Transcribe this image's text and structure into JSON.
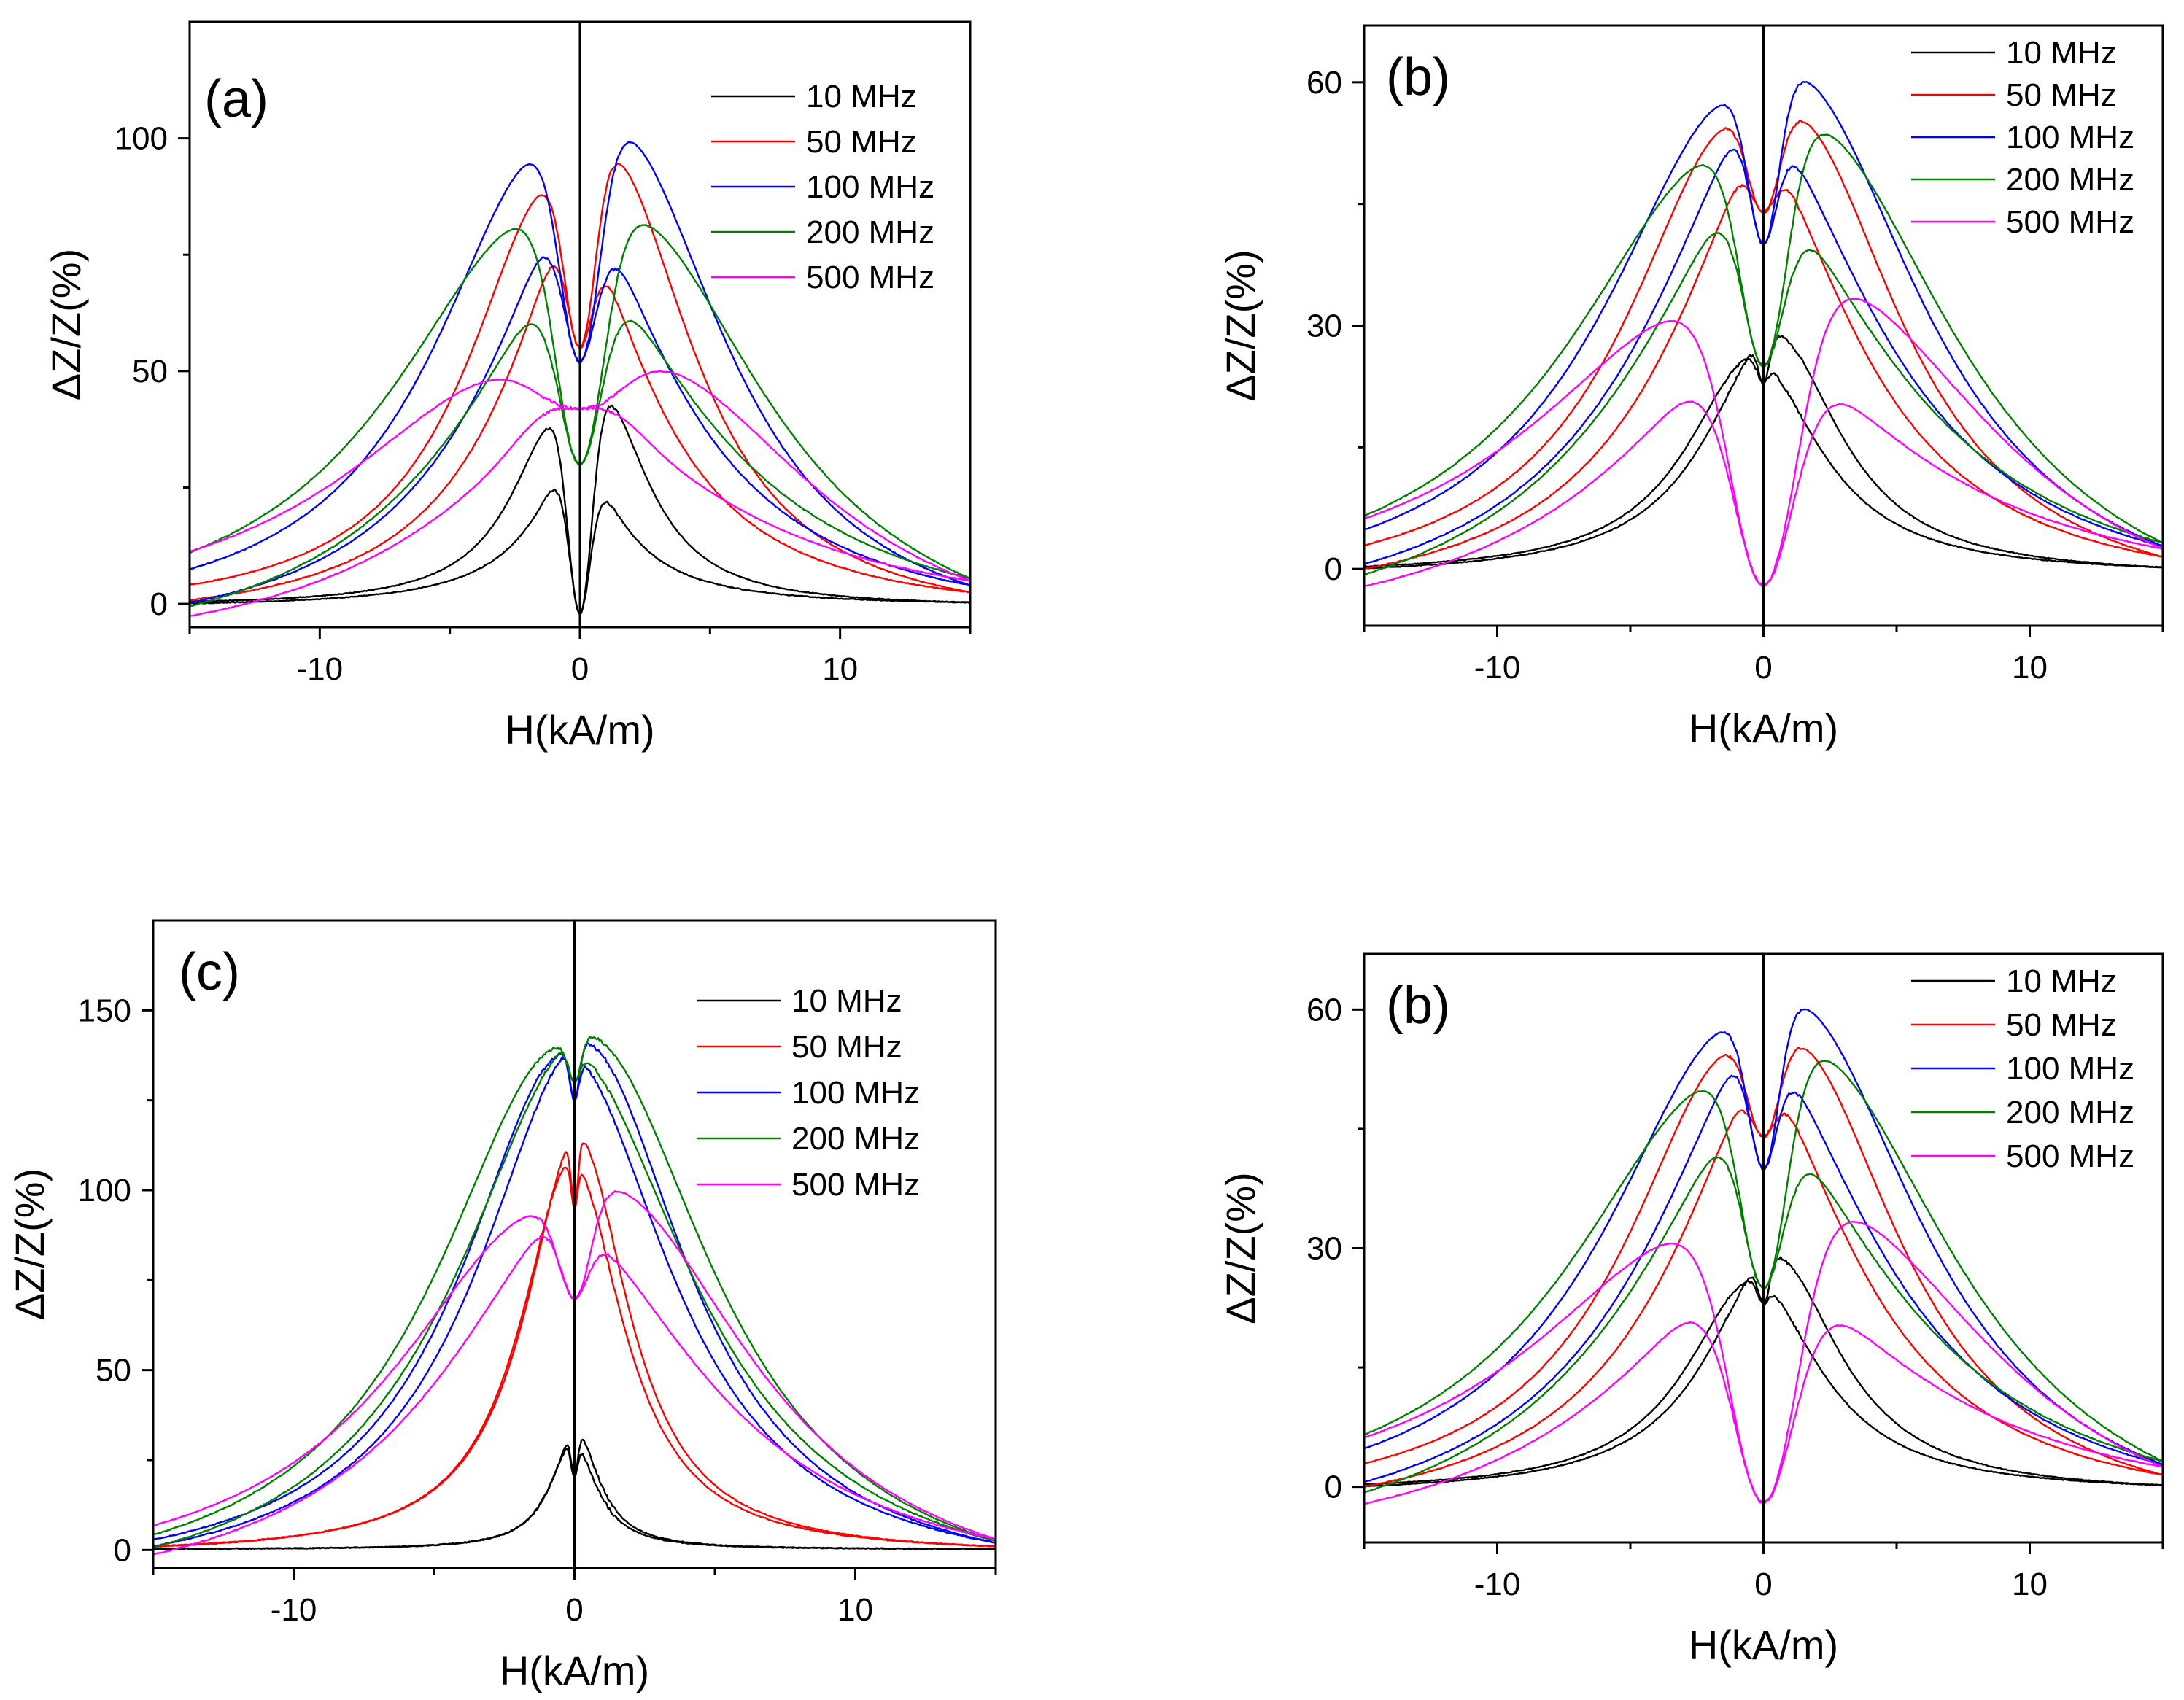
{
  "figure": {
    "panels": [
      {
        "panel_label": "(a)",
        "xlabel": "H(kA/m)",
        "ylabel": "ΔZ/Z(%)",
        "xlim": [
          -15,
          15
        ],
        "ylim": [
          -5,
          125
        ],
        "xticks": [
          -10,
          0,
          10
        ],
        "yticks": [
          0,
          50,
          100
        ],
        "xtick_labels": [
          "-10",
          "0",
          "10"
        ],
        "ytick_labels": [
          "0",
          "50",
          "100"
        ]
      },
      {
        "panel_label": "(b)",
        "xlabel": "H(kA/m)",
        "ylabel": "ΔZ/Z(%)",
        "xlim": [
          -15,
          15
        ],
        "ylim": [
          -7,
          67
        ],
        "xticks": [
          -10,
          0,
          10
        ],
        "yticks": [
          0,
          30,
          60
        ],
        "xtick_labels": [
          "-10",
          "0",
          "10"
        ],
        "ytick_labels": [
          "0",
          "30",
          "60"
        ]
      },
      {
        "panel_label": "(c)",
        "xlabel": "H(kA/m)",
        "ylabel": "ΔZ/Z(%)",
        "xlim": [
          -15,
          15
        ],
        "ylim": [
          -5,
          175
        ],
        "xticks": [
          -10,
          0,
          10
        ],
        "yticks": [
          0,
          50,
          100,
          150
        ],
        "xtick_labels": [
          "-10",
          "0",
          "10"
        ],
        "ytick_labels": [
          "0",
          "50",
          "100",
          "150"
        ]
      },
      {
        "panel_label": "(b)",
        "xlabel": "H(kA/m)",
        "ylabel": "ΔZ/Z(%)",
        "xlim": [
          -15,
          15
        ],
        "ylim": [
          -7,
          67
        ],
        "xticks": [
          -10,
          0,
          10
        ],
        "yticks": [
          0,
          30,
          60
        ],
        "xtick_labels": [
          "-10",
          "0",
          "10"
        ],
        "ytick_labels": [
          "0",
          "30",
          "60"
        ]
      }
    ]
  },
  "chart_data": [
    {
      "type": "line",
      "title": "(a)",
      "xlabel": "H(kA/m)",
      "ylabel": "ΔZ/Z(%)",
      "xlim": [
        -15,
        15
      ],
      "ylim": [
        -5,
        125
      ],
      "grid": false,
      "legend_position": "top-right",
      "series": [
        {
          "name": "10 MHz",
          "color": "#000000",
          "peak_field": 0.8,
          "peak_values": [
            45,
            40
          ],
          "zero_field_value": -2,
          "end_value": 0.3,
          "width": 2.2
        },
        {
          "name": "50 MHz",
          "color": "#ff0000",
          "peak_field": 1.0,
          "peak_values": [
            97,
            90
          ],
          "zero_field_value": 55,
          "end_value": 2.5,
          "width": 4.0
        },
        {
          "name": "100 MHz",
          "color": "#0000ff",
          "peak_field": 1.3,
          "peak_values": [
            102,
            97
          ],
          "zero_field_value": 52,
          "end_value": 4.0,
          "width": 5.2
        },
        {
          "name": "200 MHz",
          "color": "#008000",
          "peak_field": 1.6,
          "peak_values": [
            84,
            83
          ],
          "zero_field_value": 30,
          "end_value": 5.5,
          "width": 6.8
        },
        {
          "name": "500 MHz",
          "color": "#ff00ff",
          "peak_field": 2.5,
          "peak_values": [
            51,
            49
          ],
          "zero_field_value": 42,
          "end_value": 5.0,
          "width": 8.0
        }
      ]
    },
    {
      "type": "line",
      "title": "(b)",
      "xlabel": "H(kA/m)",
      "ylabel": "ΔZ/Z(%)",
      "xlim": [
        -15,
        15
      ],
      "ylim": [
        -7,
        67
      ],
      "grid": false,
      "legend_position": "top-right",
      "series": [
        {
          "name": "10 MHz",
          "color": "#000000",
          "peak_field": 0.4,
          "peak_values": [
            29,
            26
          ],
          "zero_field_value": 23,
          "end_value": 0.2,
          "width": 3.0
        },
        {
          "name": "50 MHz",
          "color": "#ff0000",
          "peak_field": 1.0,
          "peak_values": [
            56,
            55
          ],
          "zero_field_value": 44,
          "end_value": 1.5,
          "width": 5.0
        },
        {
          "name": "100 MHz",
          "color": "#0000ff",
          "peak_field": 1.0,
          "peak_values": [
            61,
            58
          ],
          "zero_field_value": 40,
          "end_value": 2.8,
          "width": 6.0
        },
        {
          "name": "200 MHz",
          "color": "#008000",
          "peak_field": 1.5,
          "peak_values": [
            55,
            51
          ],
          "zero_field_value": 25,
          "end_value": 3.2,
          "width": 7.0
        },
        {
          "name": "500 MHz",
          "color": "#ff00ff",
          "peak_field": 2.2,
          "peak_values": [
            35,
            32
          ],
          "zero_field_value": -2,
          "end_value": 2.5,
          "width": 8.0
        }
      ]
    },
    {
      "type": "line",
      "title": "(c)",
      "xlabel": "H(kA/m)",
      "ylabel": "ΔZ/Z(%)",
      "xlim": [
        -15,
        15
      ],
      "ylim": [
        -5,
        175
      ],
      "grid": false,
      "legend_position": "top-right",
      "series": [
        {
          "name": "10 MHz",
          "color": "#000000",
          "peak_field": 0.05,
          "peak_values": [
            33,
            30
          ],
          "zero_field_value": 20,
          "end_value": 0.3,
          "width": 1.0
        },
        {
          "name": "50 MHz",
          "color": "#ff0000",
          "peak_field": 0.1,
          "peak_values": [
            115,
            108
          ],
          "zero_field_value": 95,
          "end_value": 1.0,
          "width": 2.2
        },
        {
          "name": "100 MHz",
          "color": "#0000ff",
          "peak_field": 0.3,
          "peak_values": [
            141,
            138
          ],
          "zero_field_value": 125,
          "end_value": 2.0,
          "width": 4.5
        },
        {
          "name": "200 MHz",
          "color": "#008000",
          "peak_field": 0.4,
          "peak_values": [
            143,
            140
          ],
          "zero_field_value": 130,
          "end_value": 2.5,
          "width": 5.5
        },
        {
          "name": "500 MHz",
          "color": "#ff00ff",
          "peak_field": 1.0,
          "peak_values": [
            101,
            94
          ],
          "zero_field_value": 70,
          "end_value": 3.0,
          "width": 6.5
        }
      ]
    },
    {
      "type": "line",
      "title": "(b)",
      "xlabel": "H(kA/m)",
      "ylabel": "ΔZ/Z(%)",
      "xlim": [
        -15,
        15
      ],
      "ylim": [
        -7,
        67
      ],
      "grid": false,
      "legend_position": "top-right",
      "series": [
        {
          "name": "10 MHz",
          "color": "#000000",
          "peak_field": 0.4,
          "peak_values": [
            29,
            26
          ],
          "zero_field_value": 23,
          "end_value": 0.2,
          "width": 3.0
        },
        {
          "name": "50 MHz",
          "color": "#ff0000",
          "peak_field": 1.0,
          "peak_values": [
            56,
            55
          ],
          "zero_field_value": 44,
          "end_value": 1.5,
          "width": 5.0
        },
        {
          "name": "100 MHz",
          "color": "#0000ff",
          "peak_field": 1.0,
          "peak_values": [
            61,
            58
          ],
          "zero_field_value": 40,
          "end_value": 2.8,
          "width": 6.0
        },
        {
          "name": "200 MHz",
          "color": "#008000",
          "peak_field": 1.5,
          "peak_values": [
            55,
            51
          ],
          "zero_field_value": 25,
          "end_value": 3.2,
          "width": 7.0
        },
        {
          "name": "500 MHz",
          "color": "#ff00ff",
          "peak_field": 2.2,
          "peak_values": [
            35,
            32
          ],
          "zero_field_value": -2,
          "end_value": 2.5,
          "width": 8.0
        }
      ]
    }
  ]
}
